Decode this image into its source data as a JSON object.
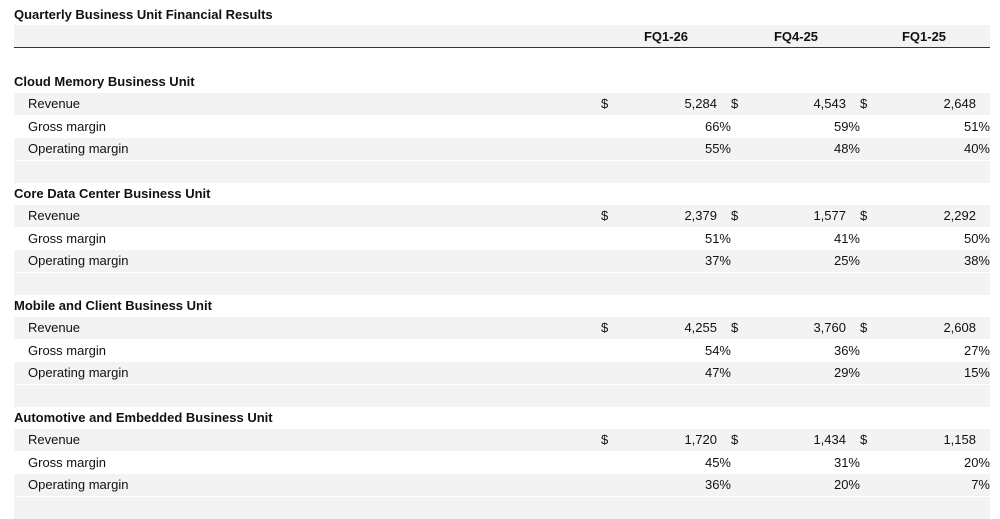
{
  "title": "Quarterly Business Unit Financial Results",
  "columns": [
    "FQ1-26",
    "FQ4-25",
    "FQ1-25"
  ],
  "currency_symbol": "$",
  "units": [
    {
      "name": "Cloud Memory Business Unit",
      "rows": [
        {
          "label": "Revenue",
          "values": [
            "5,284",
            "4,543",
            "2,648"
          ],
          "currency": true
        },
        {
          "label": "Gross margin",
          "values": [
            "66%",
            "59%",
            "51%"
          ],
          "currency": false
        },
        {
          "label": "Operating margin",
          "values": [
            "55%",
            "48%",
            "40%"
          ],
          "currency": false
        }
      ]
    },
    {
      "name": "Core Data Center Business Unit",
      "rows": [
        {
          "label": "Revenue",
          "values": [
            "2,379",
            "1,577",
            "2,292"
          ],
          "currency": true
        },
        {
          "label": "Gross margin",
          "values": [
            "51%",
            "41%",
            "50%"
          ],
          "currency": false
        },
        {
          "label": "Operating margin",
          "values": [
            "37%",
            "25%",
            "38%"
          ],
          "currency": false
        }
      ]
    },
    {
      "name": "Mobile and Client Business Unit",
      "rows": [
        {
          "label": "Revenue",
          "values": [
            "4,255",
            "3,760",
            "2,608"
          ],
          "currency": true
        },
        {
          "label": "Gross margin",
          "values": [
            "54%",
            "36%",
            "27%"
          ],
          "currency": false
        },
        {
          "label": "Operating margin",
          "values": [
            "47%",
            "29%",
            "15%"
          ],
          "currency": false
        }
      ]
    },
    {
      "name": "Automotive and Embedded Business Unit",
      "rows": [
        {
          "label": "Revenue",
          "values": [
            "1,720",
            "1,434",
            "1,158"
          ],
          "currency": true
        },
        {
          "label": "Gross margin",
          "values": [
            "45%",
            "31%",
            "20%"
          ],
          "currency": false
        },
        {
          "label": "Operating margin",
          "values": [
            "36%",
            "20%",
            "7%"
          ],
          "currency": false
        }
      ]
    }
  ]
}
